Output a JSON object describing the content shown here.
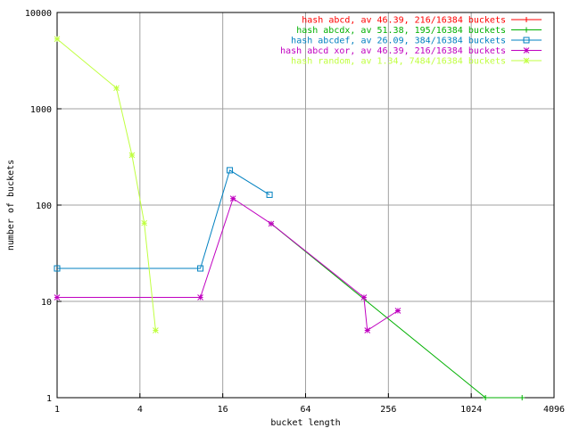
{
  "chart_data": {
    "type": "line",
    "xlabel": "bucket length",
    "ylabel": "number of buckets",
    "x_scale": "log2",
    "y_scale": "log10",
    "xlim": [
      1,
      4096
    ],
    "ylim": [
      1,
      10000
    ],
    "x_ticks": [
      "1",
      "4",
      "16",
      "64",
      "256",
      "1024",
      "4096"
    ],
    "y_ticks": [
      "1",
      "10",
      "100",
      "1000",
      "10000"
    ],
    "grid": true,
    "legend_position": "top-right",
    "series": [
      {
        "name": "hash abcd, av 46.39, 216/16384 buckets",
        "color": "#ff0000",
        "marker": "plus",
        "points": []
      },
      {
        "name": "hash abcdx, av 51.38, 195/16384 buckets",
        "color": "#00b000",
        "marker": "plus",
        "points": [
          [
            36,
            64
          ],
          [
            1300,
            1
          ],
          [
            2400,
            1
          ]
        ]
      },
      {
        "name": "hash abcdef, av 26.09, 384/16384 buckets",
        "color": "#0080c0",
        "marker": "square",
        "points": [
          [
            1,
            22
          ],
          [
            11,
            22
          ],
          [
            18,
            230
          ],
          [
            35,
            128
          ]
        ]
      },
      {
        "name": "hash abcd xor, av 46.39, 216/16384 buckets",
        "color": "#c000c0",
        "marker": "star",
        "points": [
          [
            1,
            11
          ],
          [
            11,
            11
          ],
          [
            19,
            117
          ],
          [
            36,
            64
          ],
          [
            170,
            11
          ],
          [
            180,
            5
          ],
          [
            300,
            8
          ]
        ]
      },
      {
        "name": "hash random, av 1.34, 7484/16384 buckets",
        "color": "#c0ff40",
        "marker": "star",
        "points": [
          [
            1,
            5300
          ],
          [
            2.7,
            1640
          ],
          [
            3.5,
            330
          ],
          [
            4.3,
            65
          ],
          [
            5.2,
            5
          ]
        ]
      }
    ]
  }
}
